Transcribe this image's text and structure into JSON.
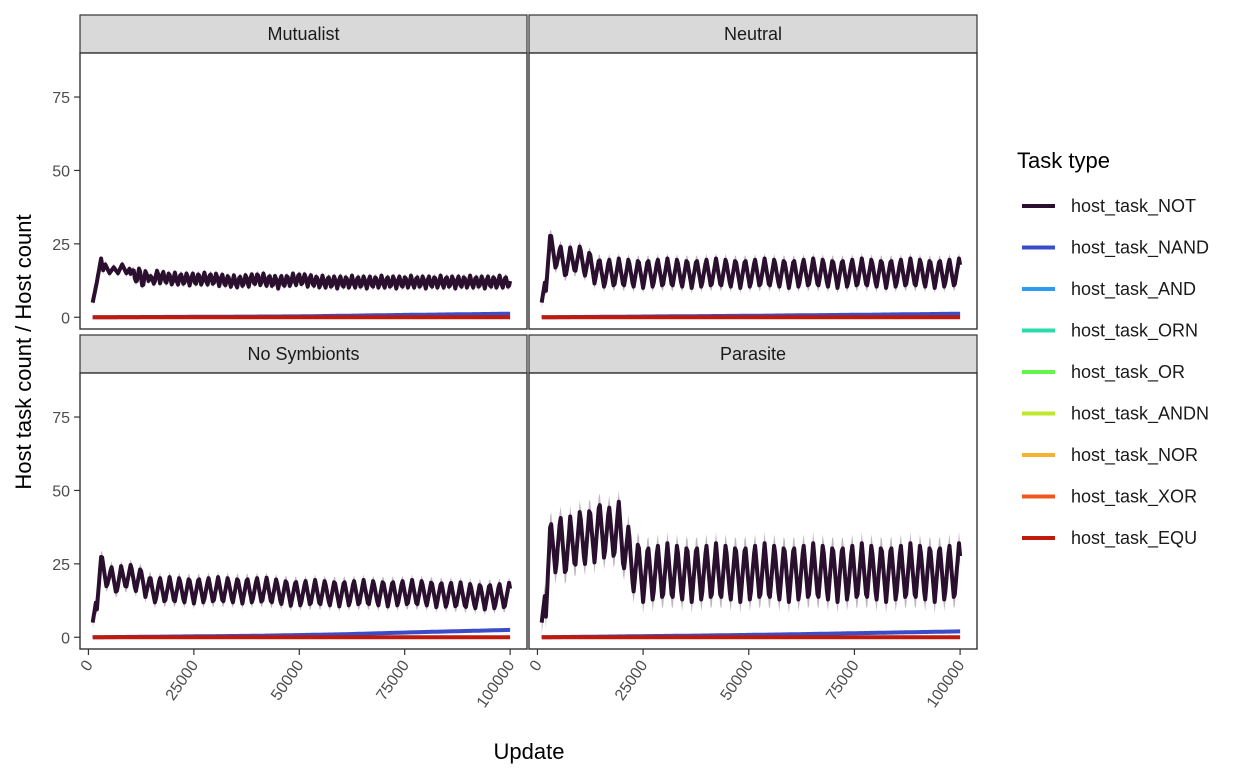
{
  "chart_data": {
    "type": "line",
    "xlabel": "Update",
    "ylabel": "Host task count / Host count",
    "xlim": [
      -2000,
      104000
    ],
    "ylim": [
      -4,
      90
    ],
    "x_ticks": [
      0,
      25000,
      50000,
      75000,
      100000
    ],
    "x_tick_labels": [
      "0",
      "25000",
      "50000",
      "75000",
      "100000"
    ],
    "y_ticks": [
      0,
      25,
      50,
      75
    ],
    "y_tick_labels": [
      "0",
      "25",
      "50",
      "75"
    ],
    "grid": false,
    "legend": {
      "title": "Task type",
      "placement": "right",
      "entries": [
        {
          "name": "host_task_NOT",
          "color": "#2a0f2e"
        },
        {
          "name": "host_task_NAND",
          "color": "#3b4cc8"
        },
        {
          "name": "host_task_AND",
          "color": "#2e9bef"
        },
        {
          "name": "host_task_ORN",
          "color": "#27dca8"
        },
        {
          "name": "host_task_OR",
          "color": "#62f64a"
        },
        {
          "name": "host_task_ANDN",
          "color": "#bde82c"
        },
        {
          "name": "host_task_NOR",
          "color": "#f6b132"
        },
        {
          "name": "host_task_XOR",
          "color": "#f0571e"
        },
        {
          "name": "host_task_EQU",
          "color": "#bf1a0c"
        }
      ]
    },
    "panels": [
      {
        "title": "Mutualist",
        "series": [
          {
            "name": "host_task_NOT",
            "x": [
              1000,
              2000,
              3000,
              3500,
              4000,
              5000,
              6000,
              7000,
              8000,
              9000,
              10000,
              11000,
              12000,
              13000,
              14000,
              15000,
              16000,
              20000,
              25000,
              30000,
              35000,
              40000,
              45000,
              50000,
              55000,
              60000,
              65000,
              70000,
              75000,
              80000,
              85000,
              90000,
              95000,
              100000
            ],
            "y": [
              5,
              12,
              20,
              16,
              18,
              15,
              17,
              15,
              18,
              15,
              17,
              13,
              15,
              12,
              15,
              12,
              14,
              13,
              13,
              13,
              12,
              13,
              12,
              13,
              12,
              12,
              12,
              12,
              12,
              12,
              12,
              12,
              12,
              12
            ],
            "band": 1.2,
            "osc": {
              "period": 1400,
              "amp": 2.2,
              "start": 10000
            }
          },
          {
            "name": "host_task_NAND",
            "x": [
              1000,
              50000,
              75000,
              100000
            ],
            "y": [
              0,
              0.3,
              0.8,
              1.2
            ],
            "band": 0.3
          },
          {
            "name": "host_task_EQU",
            "x": [
              1000,
              100000
            ],
            "y": [
              0,
              0
            ],
            "band": 0.2
          }
        ]
      },
      {
        "title": "Neutral",
        "series": [
          {
            "name": "host_task_NOT",
            "x": [
              1000,
              2000,
              3000,
              5000,
              7000,
              9000,
              11000,
              13000,
              15000,
              20000,
              30000,
              40000,
              50000,
              60000,
              70000,
              80000,
              90000,
              100000
            ],
            "y": [
              5,
              14,
              24,
              20,
              18,
              20,
              19,
              17,
              15,
              15,
              15,
              15,
              15,
              15,
              15,
              15,
              15,
              15
            ],
            "band": 2.0,
            "osc": {
              "period": 2300,
              "amp": 5.0,
              "start": 2000
            }
          },
          {
            "name": "host_task_NAND",
            "x": [
              1000,
              50000,
              80000,
              100000
            ],
            "y": [
              0,
              0.5,
              0.9,
              1.2
            ],
            "band": 0.4
          },
          {
            "name": "host_task_EQU",
            "x": [
              1000,
              100000
            ],
            "y": [
              0,
              0
            ],
            "band": 0.2
          }
        ]
      },
      {
        "title": "No Symbionts",
        "series": [
          {
            "name": "host_task_NOT",
            "x": [
              1000,
              2000,
              3000,
              5000,
              7000,
              9000,
              11000,
              13000,
              15000,
              20000,
              30000,
              40000,
              50000,
              60000,
              70000,
              80000,
              90000,
              100000
            ],
            "y": [
              5,
              14,
              24,
              20,
              19,
              21,
              20,
              19,
              16,
              16,
              16,
              16,
              15,
              15,
              15,
              15,
              14,
              14
            ],
            "band": 2.0,
            "osc": {
              "period": 2300,
              "amp": 4.5,
              "start": 2000
            }
          },
          {
            "name": "host_task_NAND",
            "x": [
              1000,
              40000,
              60000,
              80000,
              100000
            ],
            "y": [
              0,
              0.5,
              1.0,
              1.8,
              2.5
            ],
            "band": 0.6
          },
          {
            "name": "host_task_EQU",
            "x": [
              1000,
              100000
            ],
            "y": [
              0,
              0
            ],
            "band": 0.2
          }
        ]
      },
      {
        "title": "Parasite",
        "series": [
          {
            "name": "host_task_NOT",
            "x": [
              1000,
              2000,
              3000,
              5000,
              7000,
              9000,
              11000,
              13000,
              15000,
              17000,
              19000,
              21000,
              23000,
              25000,
              30000,
              40000,
              50000,
              60000,
              70000,
              80000,
              90000,
              100000
            ],
            "y": [
              5,
              17,
              30,
              32,
              30,
              33,
              34,
              35,
              37,
              35,
              37,
              30,
              24,
              22,
              22,
              22,
              22,
              22,
              22,
              22,
              22,
              22
            ],
            "band": 4.0,
            "osc": {
              "period": 2300,
              "amp": 10.0,
              "start": 2000
            }
          },
          {
            "name": "host_task_NAND",
            "x": [
              1000,
              40000,
              60000,
              80000,
              100000
            ],
            "y": [
              0,
              0.6,
              1.0,
              1.5,
              2.0
            ],
            "band": 0.6
          },
          {
            "name": "host_task_EQU",
            "x": [
              1000,
              100000
            ],
            "y": [
              0,
              0
            ],
            "band": 0.2
          }
        ]
      }
    ]
  }
}
